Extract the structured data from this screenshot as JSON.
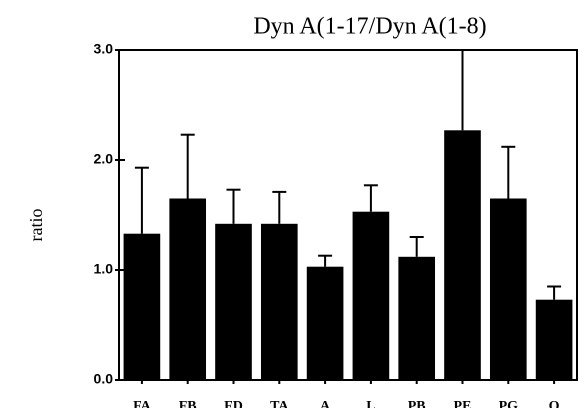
{
  "chart_data": {
    "type": "bar",
    "title": "Dyn A(1-17/Dyn A(1-8)",
    "y_label": "ratio",
    "categories": [
      "FA",
      "FB",
      "FD",
      "TA",
      "A",
      "L",
      "PB",
      "PE",
      "PG",
      "O"
    ],
    "values": [
      1.33,
      1.65,
      1.42,
      1.42,
      1.03,
      1.53,
      1.12,
      2.27,
      1.65,
      0.73
    ],
    "errors": [
      0.6,
      0.58,
      0.31,
      0.29,
      0.1,
      0.24,
      0.18,
      0.73,
      0.47,
      0.12
    ],
    "color": "#000000",
    "ylim": [
      0,
      3
    ],
    "yticks": [
      {
        "value": 0,
        "label": "0.0"
      },
      {
        "value": 1,
        "label": "1.0"
      },
      {
        "value": 2,
        "label": "2.0"
      },
      {
        "value": 3,
        "label": "3.0"
      }
    ]
  }
}
